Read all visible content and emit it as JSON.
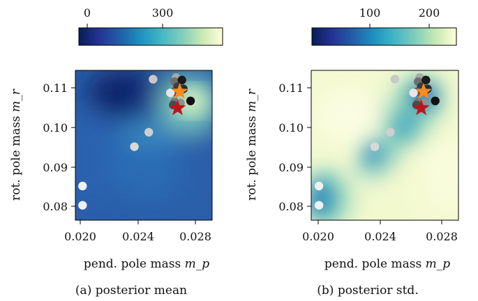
{
  "colormap": [
    "#081d58",
    "#253494",
    "#225ea8",
    "#1d91c0",
    "#41b6c4",
    "#7fcdbb",
    "#c7e9b4",
    "#ffffd9"
  ],
  "chart_data": [
    {
      "type": "heatmap",
      "caption": "(a) posterior mean",
      "xlabel": "pend. pole mass ",
      "xlabel_math": "m_p",
      "ylabel": "rot. pole mass ",
      "ylabel_math": "m_r",
      "xlim": [
        0.0193,
        0.0288
      ],
      "ylim": [
        0.0765,
        0.1138
      ],
      "xticks": [
        0.02,
        0.024,
        0.028
      ],
      "xtick_labels": [
        "0.020",
        "0.024",
        "0.028"
      ],
      "yticks": [
        0.08,
        0.09,
        0.1,
        0.11
      ],
      "ytick_labels": [
        "0.08",
        "0.09",
        "0.10",
        "0.11"
      ],
      "colorbar": {
        "range": [
          -40,
          550
        ],
        "ticks": [
          0,
          300
        ],
        "tick_labels": [
          "0",
          "300"
        ]
      },
      "points": [
        {
          "x": 0.0198,
          "y": 0.085,
          "color": "#f0f0f0"
        },
        {
          "x": 0.0198,
          "y": 0.0802,
          "color": "#f0f0f0"
        },
        {
          "x": 0.0234,
          "y": 0.0948,
          "color": "#d9d9d9"
        },
        {
          "x": 0.0244,
          "y": 0.0984,
          "color": "#cfcfcf"
        },
        {
          "x": 0.0247,
          "y": 0.1116,
          "color": "#c8c8c8"
        },
        {
          "x": 0.0263,
          "y": 0.112,
          "color": "#a8a8a8"
        },
        {
          "x": 0.0262,
          "y": 0.111,
          "color": "#6e6e6e"
        },
        {
          "x": 0.0267,
          "y": 0.1114,
          "color": "#1a1a1a"
        },
        {
          "x": 0.0264,
          "y": 0.1097,
          "color": "#3d3d3d"
        },
        {
          "x": 0.0261,
          "y": 0.1084,
          "color": "#555555"
        },
        {
          "x": 0.0259,
          "y": 0.1082,
          "color": "#e6e6e6"
        },
        {
          "x": 0.0268,
          "y": 0.1092,
          "color": "#2a2a2a"
        },
        {
          "x": 0.0262,
          "y": 0.106,
          "color": "#7a7a7a"
        },
        {
          "x": 0.0261,
          "y": 0.1052,
          "color": "#4a4a4a"
        },
        {
          "x": 0.0266,
          "y": 0.1057,
          "color": "#909090"
        },
        {
          "x": 0.0273,
          "y": 0.1062,
          "color": "#111111"
        }
      ],
      "stars": [
        {
          "x": 0.02655,
          "y": 0.1085,
          "color": "#ff8c1a"
        },
        {
          "x": 0.0264,
          "y": 0.1044,
          "color": "#c0141c"
        }
      ]
    },
    {
      "type": "heatmap",
      "caption": "(b) posterior std.",
      "xlabel": "pend. pole mass ",
      "xlabel_math": "m_p",
      "ylabel": "rot. pole mass ",
      "ylabel_math": "m_r",
      "xlim": [
        0.0193,
        0.0288
      ],
      "ylim": [
        0.0765,
        0.1138
      ],
      "xticks": [
        0.02,
        0.024,
        0.028
      ],
      "xtick_labels": [
        "0.020",
        "0.024",
        "0.028"
      ],
      "yticks": [
        0.08,
        0.09,
        0.1,
        0.11
      ],
      "ytick_labels": [
        "0.08",
        "0.09",
        "0.10",
        "0.11"
      ],
      "colorbar": {
        "range": [
          20,
          245
        ],
        "ticks": [
          100,
          200
        ],
        "tick_labels": [
          "100",
          "200"
        ]
      },
      "points": [
        {
          "x": 0.0198,
          "y": 0.085,
          "color": "#f0f0f0"
        },
        {
          "x": 0.0198,
          "y": 0.0802,
          "color": "#f0f0f0"
        },
        {
          "x": 0.0234,
          "y": 0.0948,
          "color": "#d9d9d9"
        },
        {
          "x": 0.0244,
          "y": 0.0984,
          "color": "#cfcfcf"
        },
        {
          "x": 0.0247,
          "y": 0.1116,
          "color": "#c8c8c8"
        },
        {
          "x": 0.0263,
          "y": 0.112,
          "color": "#a8a8a8"
        },
        {
          "x": 0.0262,
          "y": 0.111,
          "color": "#6e6e6e"
        },
        {
          "x": 0.0267,
          "y": 0.1114,
          "color": "#1a1a1a"
        },
        {
          "x": 0.0264,
          "y": 0.1097,
          "color": "#3d3d3d"
        },
        {
          "x": 0.0261,
          "y": 0.1084,
          "color": "#555555"
        },
        {
          "x": 0.0259,
          "y": 0.1082,
          "color": "#e6e6e6"
        },
        {
          "x": 0.0268,
          "y": 0.1092,
          "color": "#2a2a2a"
        },
        {
          "x": 0.0262,
          "y": 0.106,
          "color": "#7a7a7a"
        },
        {
          "x": 0.0261,
          "y": 0.1052,
          "color": "#4a4a4a"
        },
        {
          "x": 0.0266,
          "y": 0.1057,
          "color": "#909090"
        },
        {
          "x": 0.0273,
          "y": 0.1062,
          "color": "#111111"
        }
      ],
      "stars": [
        {
          "x": 0.02655,
          "y": 0.1085,
          "color": "#ff8c1a"
        },
        {
          "x": 0.0264,
          "y": 0.1044,
          "color": "#c0141c"
        }
      ]
    }
  ]
}
